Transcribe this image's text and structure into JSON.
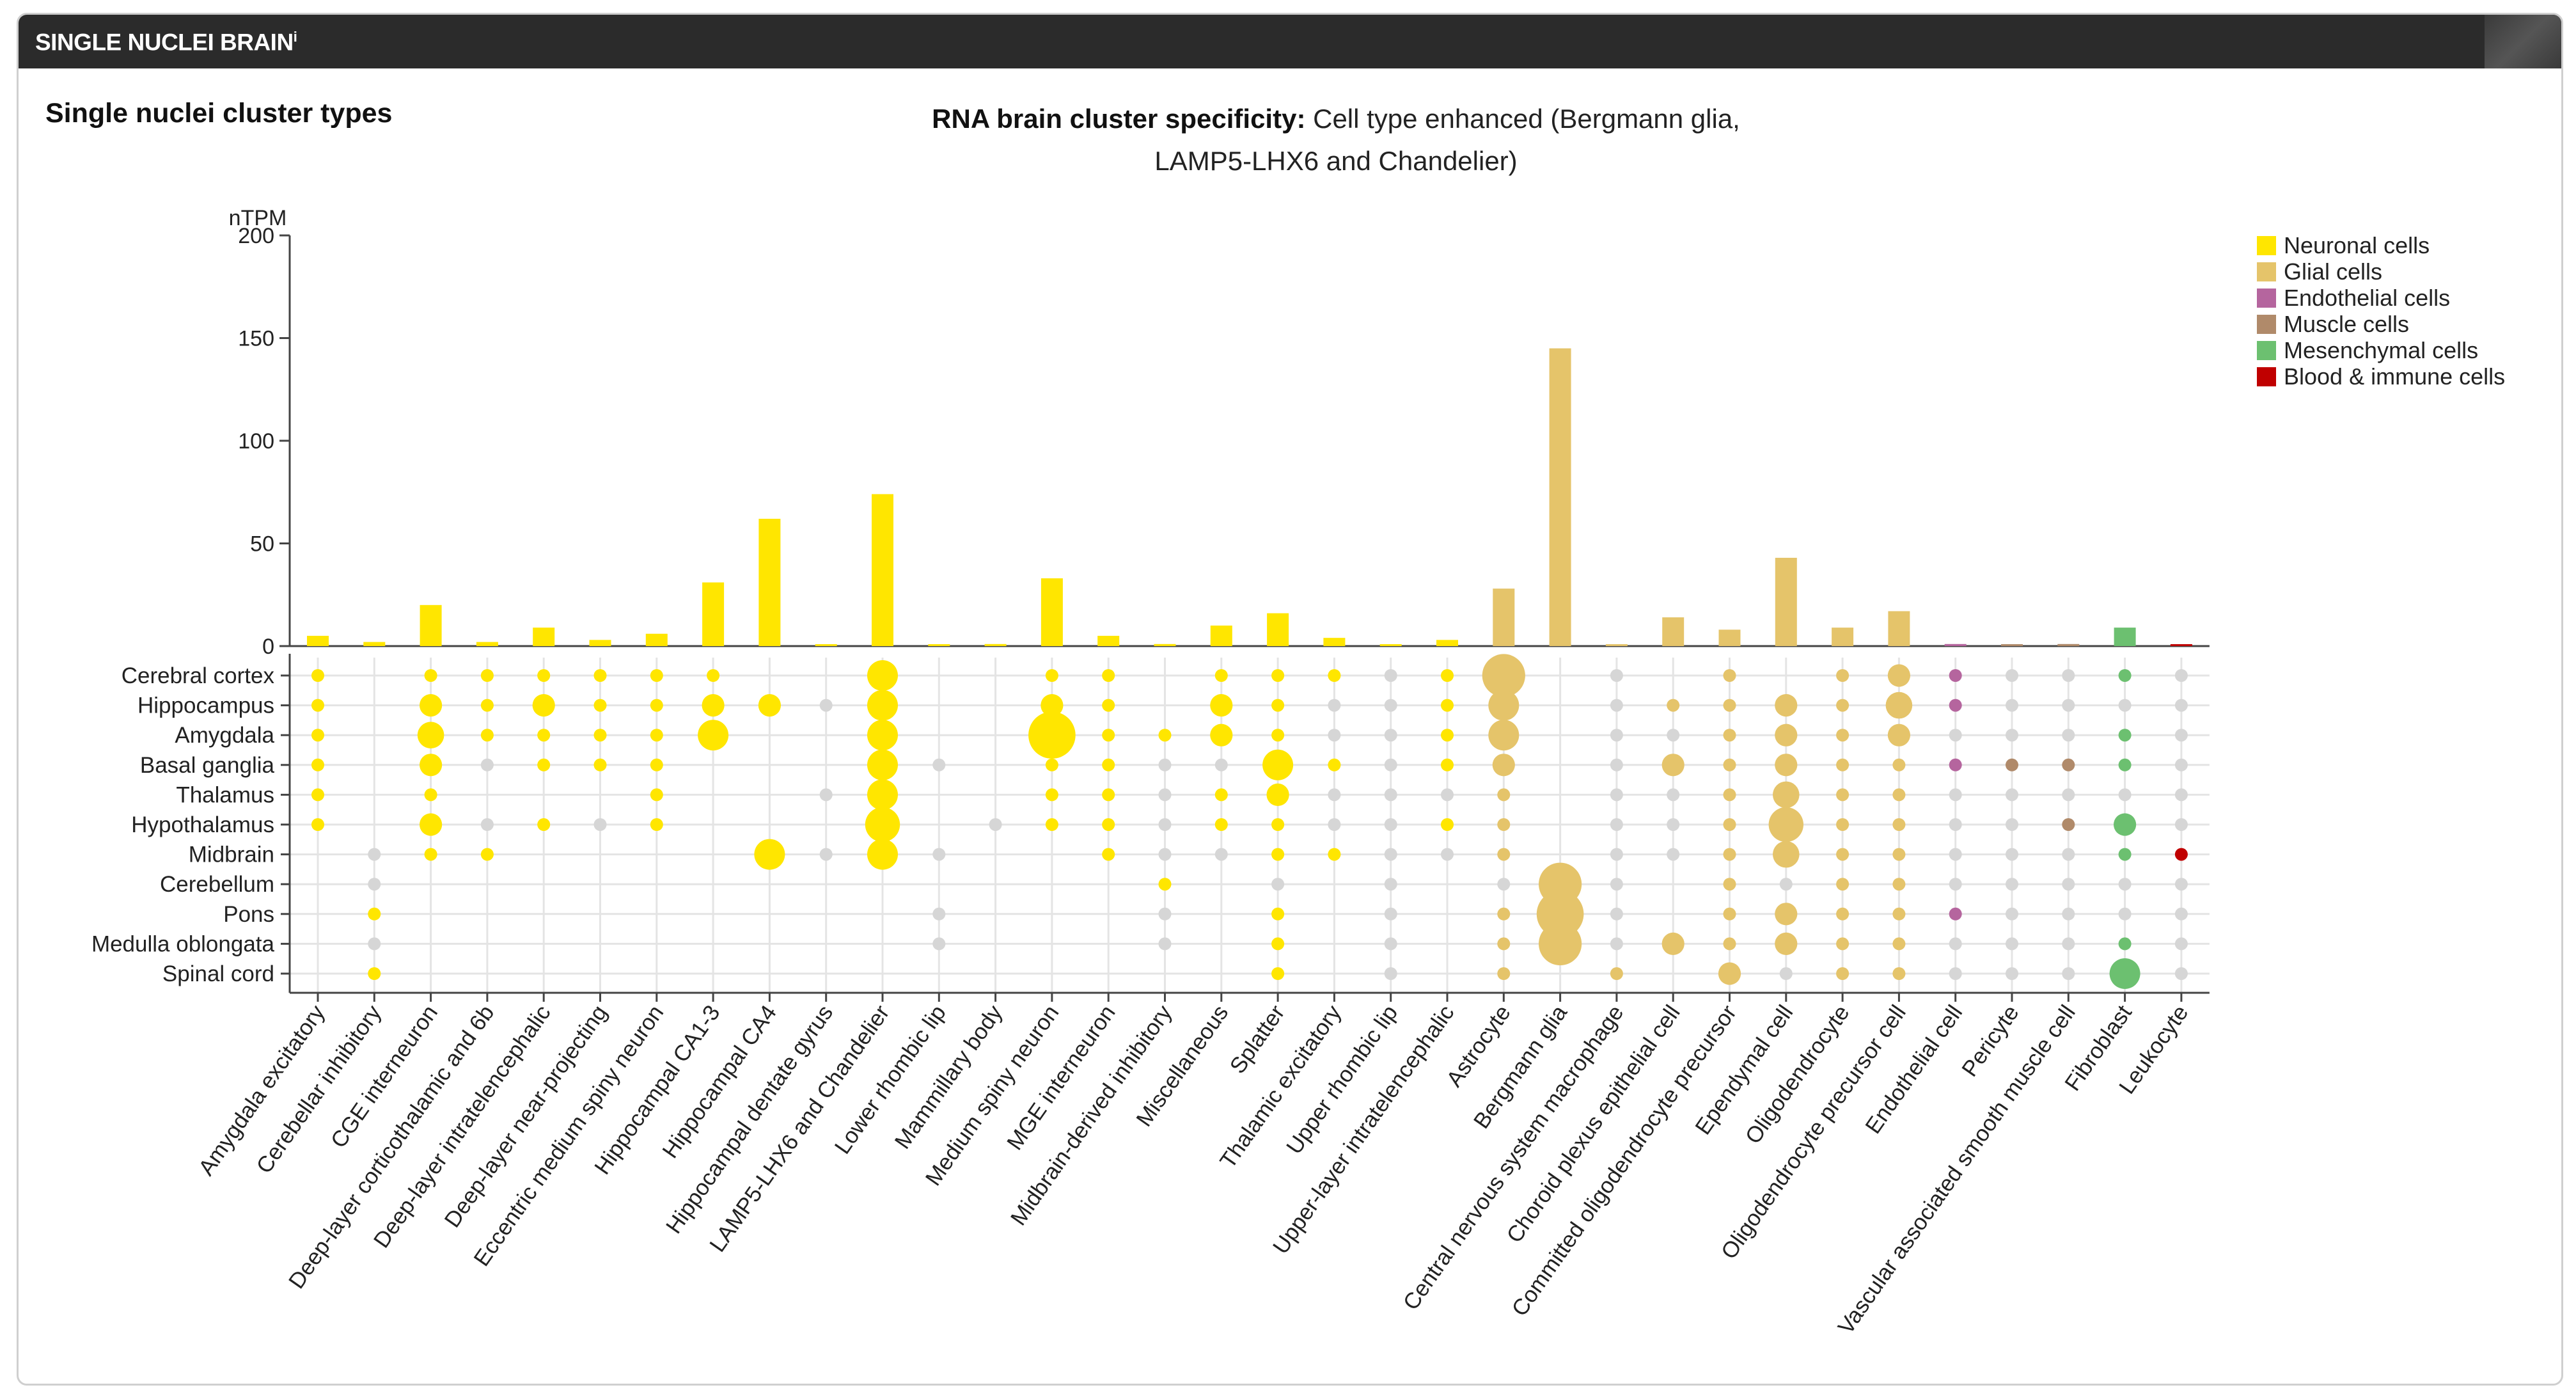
{
  "header": {
    "title": "SINGLE NUCLEI BRAIN",
    "info_mark": "i"
  },
  "subtitle": "Single nuclei cluster types",
  "specificity": {
    "label": "RNA brain cluster specificity:",
    "line1": " Cell type enhanced (Bergmann glia,",
    "line2": "LAMP5-LHX6 and Chandelier)"
  },
  "legend": [
    {
      "name": "Neuronal cells",
      "color": "#FFE600"
    },
    {
      "name": "Glial cells",
      "color": "#E5C46A"
    },
    {
      "name": "Endothelial cells",
      "color": "#B5659E"
    },
    {
      "name": "Muscle cells",
      "color": "#B08A6A"
    },
    {
      "name": "Mesenchymal cells",
      "color": "#6CC070"
    },
    {
      "name": "Blood & immune cells",
      "color": "#C00000"
    }
  ],
  "chart_data": {
    "type": "bar",
    "title": "Single nuclei cluster types",
    "ylabel": "nTPM",
    "ylim": [
      0,
      200
    ],
    "yticks": [
      0,
      50,
      100,
      150,
      200
    ],
    "categories": [
      "Amygdala excitatory",
      "Cerebellar inhibitory",
      "CGE interneuron",
      "Deep-layer corticothalamic and 6b",
      "Deep-layer intratelencephalic",
      "Deep-layer near-projecting",
      "Eccentric medium spiny neuron",
      "Hippocampal CA1-3",
      "Hippocampal CA4",
      "Hippocampal dentate gyrus",
      "LAMP5-LHX6 and Chandelier",
      "Lower rhombic lip",
      "Mammillary body",
      "Medium spiny neuron",
      "MGE interneuron",
      "Midbrain-derived inhibitory",
      "Miscellaneous",
      "Splatter",
      "Thalamic excitatory",
      "Upper rhombic lip",
      "Upper-layer intratelencephalic",
      "Astrocyte",
      "Bergmann glia",
      "Central nervous system macrophage",
      "Choroid plexus epithelial cell",
      "Committed oligodendrocyte precursor",
      "Ependymal cell",
      "Oligodendrocyte",
      "Oligodendrocyte precursor cell",
      "Endothelial cell",
      "Pericyte",
      "Vascular associated smooth muscle cell",
      "Fibroblast",
      "Leukocyte"
    ],
    "groups": [
      "N",
      "N",
      "N",
      "N",
      "N",
      "N",
      "N",
      "N",
      "N",
      "N",
      "N",
      "N",
      "N",
      "N",
      "N",
      "N",
      "N",
      "N",
      "N",
      "N",
      "N",
      "G",
      "G",
      "G",
      "G",
      "G",
      "G",
      "G",
      "G",
      "E",
      "M",
      "M",
      "S",
      "B"
    ],
    "values": [
      5,
      2,
      20,
      2,
      9,
      3,
      6,
      31,
      62,
      0,
      74,
      0,
      1,
      33,
      5,
      1,
      10,
      16,
      4,
      0,
      3,
      28,
      145,
      0,
      14,
      8,
      43,
      9,
      17,
      1,
      0,
      1,
      9,
      0
    ],
    "regions": [
      "Cerebral cortex",
      "Hippocampus",
      "Amygdala",
      "Basal ganglia",
      "Thalamus",
      "Hypothalamus",
      "Midbrain",
      "Cerebellum",
      "Pons",
      "Medulla oblongata",
      "Spinal cord"
    ],
    "dots": [
      [
        2,
        0,
        2,
        2,
        2,
        2,
        2,
        2,
        0,
        0,
        5,
        0,
        0,
        2,
        2,
        0,
        2,
        2,
        2,
        1,
        2,
        8,
        0,
        1,
        0,
        2,
        0,
        2,
        3,
        2,
        1,
        1,
        2,
        1
      ],
      [
        2,
        0,
        3,
        2,
        3,
        2,
        2,
        3,
        3,
        1,
        5,
        0,
        0,
        3,
        2,
        0,
        3,
        2,
        1,
        1,
        2,
        5,
        0,
        1,
        2,
        2,
        3,
        2,
        4,
        2,
        1,
        1,
        1,
        1
      ],
      [
        2,
        0,
        4,
        2,
        2,
        2,
        2,
        5,
        0,
        0,
        5,
        0,
        0,
        9,
        2,
        2,
        3,
        2,
        1,
        1,
        2,
        5,
        0,
        1,
        1,
        2,
        3,
        2,
        3,
        1,
        1,
        1,
        2,
        1
      ],
      [
        2,
        0,
        3,
        1,
        2,
        2,
        2,
        0,
        0,
        0,
        5,
        1,
        0,
        2,
        2,
        1,
        1,
        5,
        2,
        1,
        2,
        3,
        0,
        1,
        3,
        2,
        3,
        2,
        2,
        2,
        2,
        2,
        2,
        1
      ],
      [
        2,
        0,
        2,
        0,
        0,
        0,
        2,
        0,
        0,
        1,
        5,
        0,
        0,
        2,
        2,
        1,
        2,
        3,
        1,
        1,
        1,
        2,
        0,
        1,
        1,
        2,
        4,
        2,
        2,
        1,
        1,
        1,
        1,
        1
      ],
      [
        2,
        0,
        3,
        1,
        2,
        1,
        2,
        0,
        0,
        0,
        6,
        0,
        1,
        2,
        2,
        1,
        2,
        2,
        1,
        1,
        2,
        2,
        0,
        1,
        1,
        2,
        6,
        2,
        2,
        1,
        1,
        2,
        3,
        1
      ],
      [
        0,
        1,
        2,
        2,
        0,
        0,
        0,
        0,
        5,
        1,
        5,
        1,
        0,
        0,
        2,
        1,
        1,
        2,
        2,
        1,
        1,
        2,
        0,
        1,
        1,
        2,
        4,
        2,
        2,
        1,
        1,
        1,
        2,
        2
      ],
      [
        0,
        1,
        0,
        0,
        0,
        0,
        0,
        0,
        0,
        0,
        0,
        0,
        0,
        0,
        0,
        2,
        0,
        1,
        0,
        1,
        0,
        1,
        8,
        1,
        0,
        2,
        1,
        2,
        2,
        1,
        1,
        1,
        1,
        1
      ],
      [
        0,
        2,
        0,
        0,
        0,
        0,
        0,
        0,
        0,
        0,
        0,
        1,
        0,
        0,
        0,
        1,
        0,
        2,
        0,
        1,
        0,
        2,
        9,
        1,
        0,
        2,
        3,
        2,
        2,
        2,
        1,
        1,
        1,
        1
      ],
      [
        0,
        1,
        0,
        0,
        0,
        0,
        0,
        0,
        0,
        0,
        0,
        1,
        0,
        0,
        0,
        1,
        0,
        2,
        0,
        1,
        0,
        2,
        8,
        1,
        3,
        2,
        3,
        2,
        2,
        1,
        1,
        1,
        2,
        1
      ],
      [
        0,
        2,
        0,
        0,
        0,
        0,
        0,
        0,
        0,
        0,
        0,
        0,
        0,
        0,
        0,
        0,
        0,
        2,
        0,
        1,
        0,
        2,
        0,
        2,
        0,
        3,
        1,
        2,
        2,
        1,
        1,
        1,
        5,
        1
      ]
    ]
  }
}
